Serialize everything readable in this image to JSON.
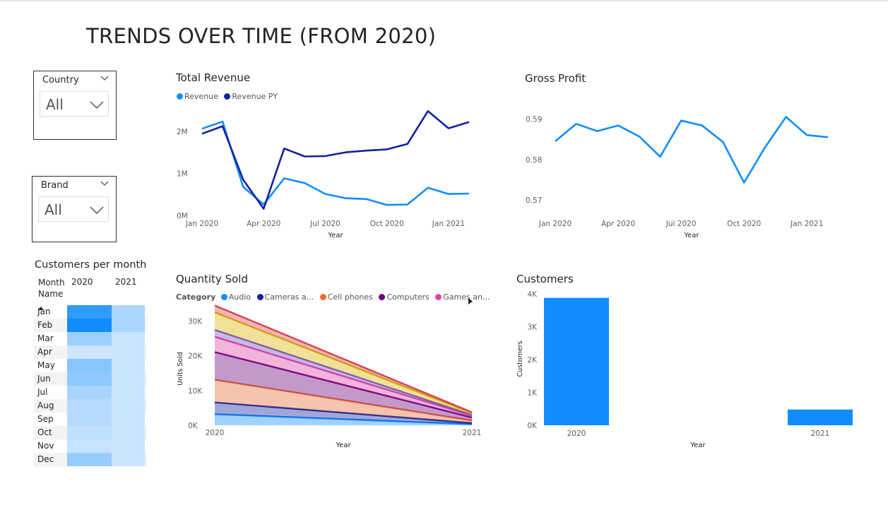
{
  "page": {
    "title": "TRENDS OVER TIME (FROM 2020)"
  },
  "slicers": {
    "country": {
      "label": "Country",
      "value": "All"
    },
    "brand": {
      "label": "Brand",
      "value": "All"
    }
  },
  "customers_per_month": {
    "title": "Customers per month",
    "row_header": "Month Name",
    "col_headers": [
      "2020",
      "2021"
    ],
    "rows": [
      {
        "month": "Jan",
        "v2020": 0.85,
        "v2021": 0.25
      },
      {
        "month": "Feb",
        "v2020": 1.0,
        "v2021": 0.25
      },
      {
        "month": "Mar",
        "v2020": 0.32,
        "v2021": 0.1
      },
      {
        "month": "Apr",
        "v2020": 0.08,
        "v2021": 0.1
      },
      {
        "month": "May",
        "v2020": 0.42,
        "v2021": 0.1
      },
      {
        "month": "Jun",
        "v2020": 0.38,
        "v2021": 0.1
      },
      {
        "month": "Jul",
        "v2020": 0.26,
        "v2021": 0.1
      },
      {
        "month": "Aug",
        "v2020": 0.2,
        "v2021": 0.1
      },
      {
        "month": "Sep",
        "v2020": 0.2,
        "v2021": 0.1
      },
      {
        "month": "Oct",
        "v2020": 0.14,
        "v2021": 0.1
      },
      {
        "month": "Nov",
        "v2020": 0.12,
        "v2021": 0.1
      },
      {
        "month": "Dec",
        "v2020": 0.35,
        "v2021": 0.1
      }
    ]
  },
  "chart_data": [
    {
      "id": "total-revenue",
      "type": "line",
      "title": "Total Revenue",
      "xlabel": "Year",
      "ylabel": "",
      "x_tick_labels": [
        "Jan 2020",
        "Apr 2020",
        "Jul 2020",
        "Oct 2020",
        "Jan 2021"
      ],
      "y_tick_labels": [
        "0M",
        "1M",
        "2M"
      ],
      "ylim": [
        0,
        2600000
      ],
      "x": [
        "2020-01",
        "2020-02",
        "2020-03",
        "2020-04",
        "2020-05",
        "2020-06",
        "2020-07",
        "2020-08",
        "2020-09",
        "2020-10",
        "2020-11",
        "2020-12",
        "2021-01",
        "2021-02"
      ],
      "series": [
        {
          "name": "Revenue",
          "color": "#118DFF",
          "values": [
            2060000,
            2230000,
            680000,
            260000,
            880000,
            770000,
            510000,
            410000,
            390000,
            250000,
            260000,
            660000,
            510000,
            520000
          ]
        },
        {
          "name": "Revenue PY",
          "color": "#12239E",
          "values": [
            1940000,
            2120000,
            850000,
            160000,
            1590000,
            1400000,
            1410000,
            1500000,
            1540000,
            1570000,
            1700000,
            2480000,
            2070000,
            2220000
          ]
        }
      ]
    },
    {
      "id": "gross-profit",
      "type": "line",
      "title": "Gross Profit",
      "xlabel": "Year",
      "ylabel": "",
      "x_tick_labels": [
        "Jan 2020",
        "Apr 2020",
        "Jul 2020",
        "Oct 2020",
        "Jan 2021"
      ],
      "y_tick_labels": [
        "0.57",
        "0.58",
        "0.59"
      ],
      "ylim": [
        0.5662,
        0.5932
      ],
      "x": [
        "2020-01",
        "2020-02",
        "2020-03",
        "2020-04",
        "2020-05",
        "2020-06",
        "2020-07",
        "2020-08",
        "2020-09",
        "2020-10",
        "2020-11",
        "2020-12",
        "2021-01",
        "2021-02"
      ],
      "series": [
        {
          "name": "Gross Profit",
          "color": "#118DFF",
          "values": [
            0.5845,
            0.5888,
            0.587,
            0.5884,
            0.5857,
            0.5807,
            0.5896,
            0.5884,
            0.5843,
            0.5743,
            0.583,
            0.5905,
            0.586,
            0.5855
          ]
        }
      ]
    },
    {
      "id": "quantity-sold",
      "type": "area",
      "title": "Quantity Sold",
      "xlabel": "Year",
      "ylabel": "Units Sold",
      "legend_title": "Category",
      "legend_entries": [
        "Audio",
        "Cameras a...",
        "Cell phones",
        "Computers",
        "Games an..."
      ],
      "x_tick_labels": [
        "2020",
        "2021"
      ],
      "y_tick_labels": [
        "0K",
        "10K",
        "20K",
        "30K"
      ],
      "ylim": [
        0,
        35000
      ],
      "x": [
        "2020",
        "2021"
      ],
      "stacked": true,
      "series": [
        {
          "name": "Audio",
          "color": "#118DFF",
          "values": [
            3200,
            300
          ]
        },
        {
          "name": "Cameras a...",
          "color": "#12239E",
          "values": [
            3400,
            350
          ]
        },
        {
          "name": "Cell phones",
          "color": "#E66C37",
          "values": [
            6500,
            700
          ]
        },
        {
          "name": "Computers",
          "color": "#6B007B",
          "values": [
            8000,
            900
          ]
        },
        {
          "name": "Games an...",
          "color": "#E044A7",
          "values": [
            4400,
            500
          ]
        },
        {
          "color": "#744EC2",
          "values": [
            2000,
            250
          ]
        },
        {
          "color": "#D9B300",
          "values": [
            5000,
            500
          ]
        },
        {
          "color": "#D64550",
          "values": [
            2000,
            250
          ]
        }
      ]
    },
    {
      "id": "customers",
      "type": "bar",
      "title": "Customers",
      "xlabel": "Year",
      "ylabel": "Customers",
      "categories": [
        "2020",
        "2021"
      ],
      "values": [
        3880,
        480
      ],
      "color": "#118DFF",
      "y_tick_labels": [
        "0K",
        "1K",
        "2K",
        "3K",
        "4K"
      ],
      "ylim": [
        0,
        4000
      ]
    }
  ]
}
